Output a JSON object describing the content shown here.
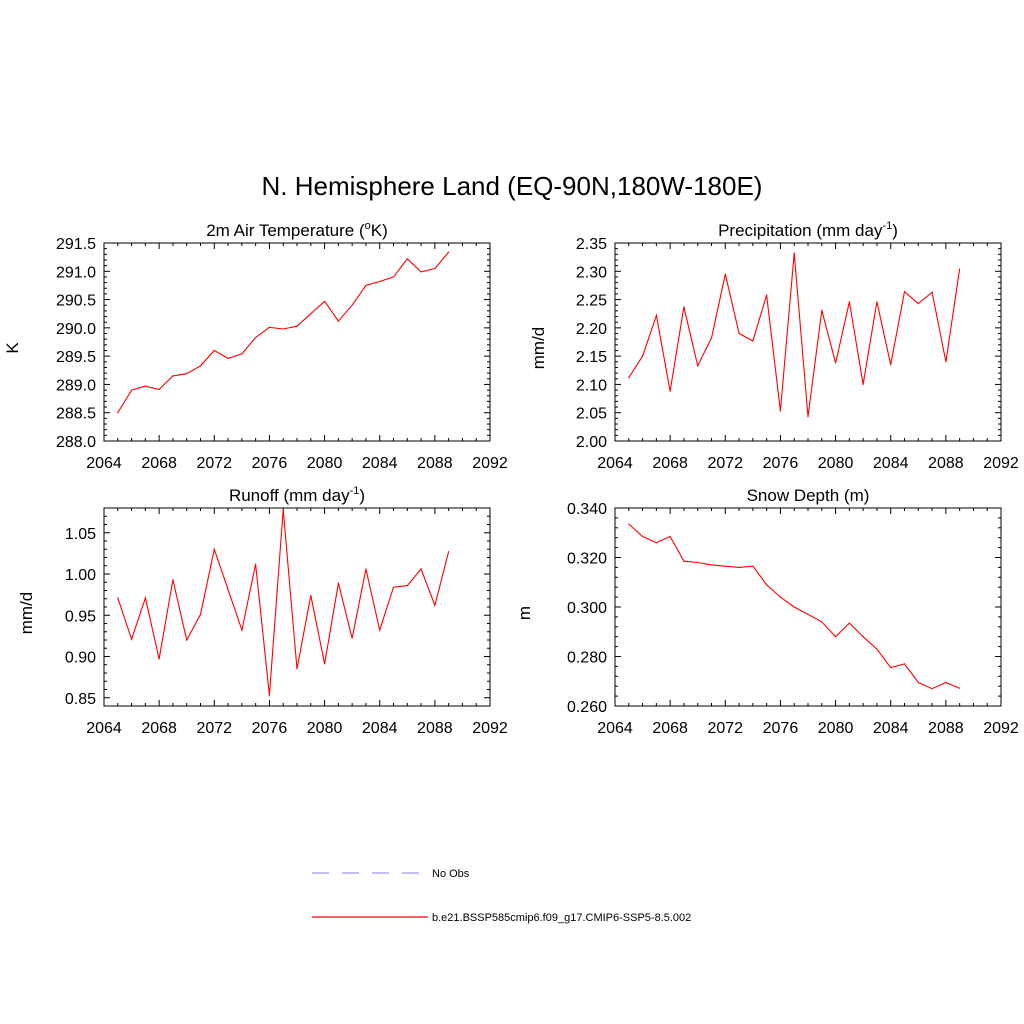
{
  "title": "N. Hemisphere Land (EQ-90N,180W-180E)",
  "colors": {
    "series": "#ff0000",
    "obs": "#9999ff",
    "axis": "#000000"
  },
  "legend": {
    "entries": [
      {
        "label": "No Obs",
        "style": "dashed",
        "color": "#9999ff"
      },
      {
        "label": "b.e21.BSSP585cmip6.f09_g17.CMIP6-SSP5-8.5.002",
        "style": "solid",
        "color": "#ff0000"
      }
    ]
  },
  "chart_data": [
    {
      "type": "line",
      "title": "2m Air Temperature (",
      "title_sup": "o",
      "title_post": "K)",
      "ylabel": "K",
      "xlim": [
        2064,
        2092
      ],
      "ylim": [
        288.0,
        291.5
      ],
      "xticks": [
        2064,
        2068,
        2072,
        2076,
        2080,
        2084,
        2088,
        2092
      ],
      "yticks": [
        288.0,
        288.5,
        289.0,
        289.5,
        290.0,
        290.5,
        291.0,
        291.5
      ],
      "ytick_decimals": 1,
      "x": [
        2065,
        2066,
        2067,
        2068,
        2069,
        2070,
        2071,
        2072,
        2073,
        2074,
        2075,
        2076,
        2077,
        2078,
        2079,
        2080,
        2081,
        2082,
        2083,
        2084,
        2085,
        2086,
        2087,
        2088,
        2089
      ],
      "series": [
        {
          "values": [
            288.5,
            288.9,
            288.97,
            288.91,
            289.15,
            289.19,
            289.33,
            289.6,
            289.46,
            289.54,
            289.83,
            290.01,
            289.98,
            290.03,
            290.25,
            290.47,
            290.12,
            290.4,
            290.75,
            290.82,
            290.9,
            291.22,
            290.99,
            291.05,
            291.34
          ]
        }
      ]
    },
    {
      "type": "line",
      "title": "Precipitation (mm day",
      "title_sup": "-1",
      "title_post": ")",
      "ylabel": "mm/d",
      "xlim": [
        2064,
        2092
      ],
      "ylim": [
        2.0,
        2.35
      ],
      "xticks": [
        2064,
        2068,
        2072,
        2076,
        2080,
        2084,
        2088,
        2092
      ],
      "yticks": [
        2.0,
        2.05,
        2.1,
        2.15,
        2.2,
        2.25,
        2.3,
        2.35
      ],
      "ytick_decimals": 2,
      "x": [
        2065,
        2066,
        2067,
        2068,
        2069,
        2070,
        2071,
        2072,
        2073,
        2074,
        2075,
        2076,
        2077,
        2078,
        2079,
        2080,
        2081,
        2082,
        2083,
        2084,
        2085,
        2086,
        2087,
        2088,
        2089
      ],
      "series": [
        {
          "values": [
            2.112,
            2.15,
            2.222,
            2.088,
            2.237,
            2.133,
            2.182,
            2.295,
            2.19,
            2.177,
            2.258,
            2.053,
            2.332,
            2.043,
            2.231,
            2.138,
            2.246,
            2.1,
            2.246,
            2.135,
            2.264,
            2.243,
            2.263,
            2.14,
            2.304
          ]
        }
      ]
    },
    {
      "type": "line",
      "title": "Runoff (mm day",
      "title_sup": "-1",
      "title_post": ")",
      "ylabel": "mm/d",
      "xlim": [
        2064,
        2092
      ],
      "ylim": [
        0.84,
        1.08
      ],
      "xticks": [
        2064,
        2068,
        2072,
        2076,
        2080,
        2084,
        2088,
        2092
      ],
      "yticks": [
        0.85,
        0.9,
        0.95,
        1.0,
        1.05
      ],
      "ytick_decimals": 2,
      "x": [
        2065,
        2066,
        2067,
        2068,
        2069,
        2070,
        2071,
        2072,
        2073,
        2074,
        2075,
        2076,
        2077,
        2078,
        2079,
        2080,
        2081,
        2082,
        2083,
        2084,
        2085,
        2086,
        2087,
        2088,
        2089
      ],
      "series": [
        {
          "values": [
            0.971,
            0.921,
            0.971,
            0.897,
            0.993,
            0.92,
            0.951,
            1.03,
            0.981,
            0.932,
            1.012,
            0.853,
            1.078,
            0.885,
            0.974,
            0.891,
            0.989,
            0.922,
            1.006,
            0.932,
            0.984,
            0.986,
            1.006,
            0.962,
            1.027
          ]
        }
      ]
    },
    {
      "type": "line",
      "title": "Snow Depth (m)",
      "title_sup": "",
      "title_post": "",
      "ylabel": "m",
      "xlim": [
        2064,
        2092
      ],
      "ylim": [
        0.26,
        0.34
      ],
      "xticks": [
        2064,
        2068,
        2072,
        2076,
        2080,
        2084,
        2088,
        2092
      ],
      "yticks": [
        0.26,
        0.28,
        0.3,
        0.32,
        0.34
      ],
      "ytick_decimals": 3,
      "x": [
        2065,
        2066,
        2067,
        2068,
        2069,
        2070,
        2071,
        2072,
        2073,
        2074,
        2075,
        2076,
        2077,
        2078,
        2079,
        2080,
        2081,
        2082,
        2083,
        2084,
        2085,
        2086,
        2087,
        2088,
        2089
      ],
      "series": [
        {
          "values": [
            0.3335,
            0.3285,
            0.326,
            0.3285,
            0.3185,
            0.318,
            0.317,
            0.3165,
            0.316,
            0.3165,
            0.309,
            0.304,
            0.3,
            0.297,
            0.294,
            0.288,
            0.2935,
            0.288,
            0.283,
            0.2755,
            0.277,
            0.2695,
            0.267,
            0.2695,
            0.2672
          ]
        }
      ]
    }
  ]
}
